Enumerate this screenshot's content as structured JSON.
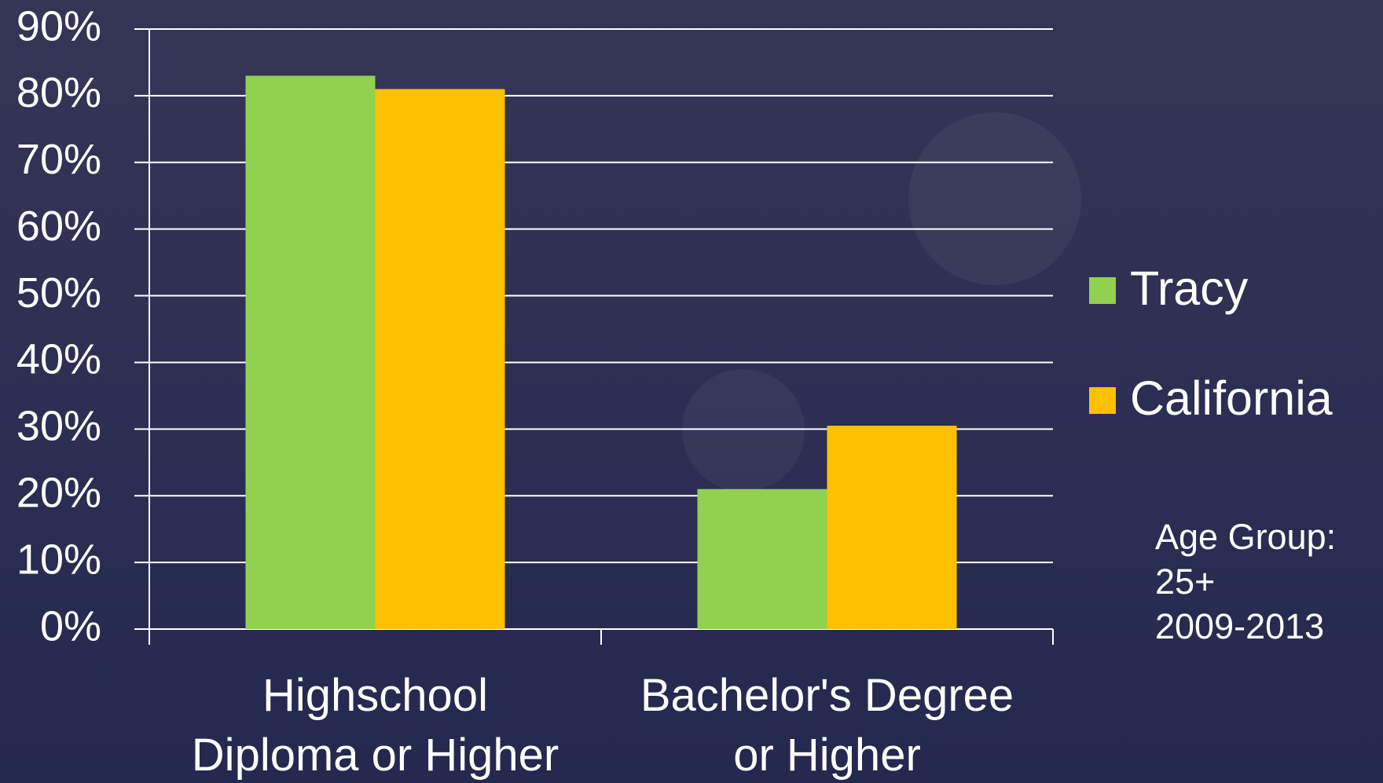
{
  "chart_data": {
    "type": "bar",
    "categories": [
      "Highschool\nDiploma or Higher",
      "Bachelor's Degree\nor Higher"
    ],
    "series": [
      {
        "name": "Tracy",
        "color": "#92d050",
        "values": [
          83,
          21
        ]
      },
      {
        "name": "California",
        "color": "#ffc000",
        "values": [
          81,
          30.5
        ]
      }
    ],
    "ylim": [
      0,
      90
    ],
    "yticks": [
      {
        "value": 0,
        "label": "0%"
      },
      {
        "value": 10,
        "label": "10%"
      },
      {
        "value": 20,
        "label": "20%"
      },
      {
        "value": 30,
        "label": "30%"
      },
      {
        "value": 40,
        "label": "40%"
      },
      {
        "value": 50,
        "label": "50%"
      },
      {
        "value": 60,
        "label": "60%"
      },
      {
        "value": 70,
        "label": "70%"
      },
      {
        "value": 80,
        "label": "80%"
      },
      {
        "value": 90,
        "label": "90%"
      }
    ],
    "grid": true,
    "legend": "right",
    "annotation": "Age Group:\n25+\n2009-2013"
  }
}
